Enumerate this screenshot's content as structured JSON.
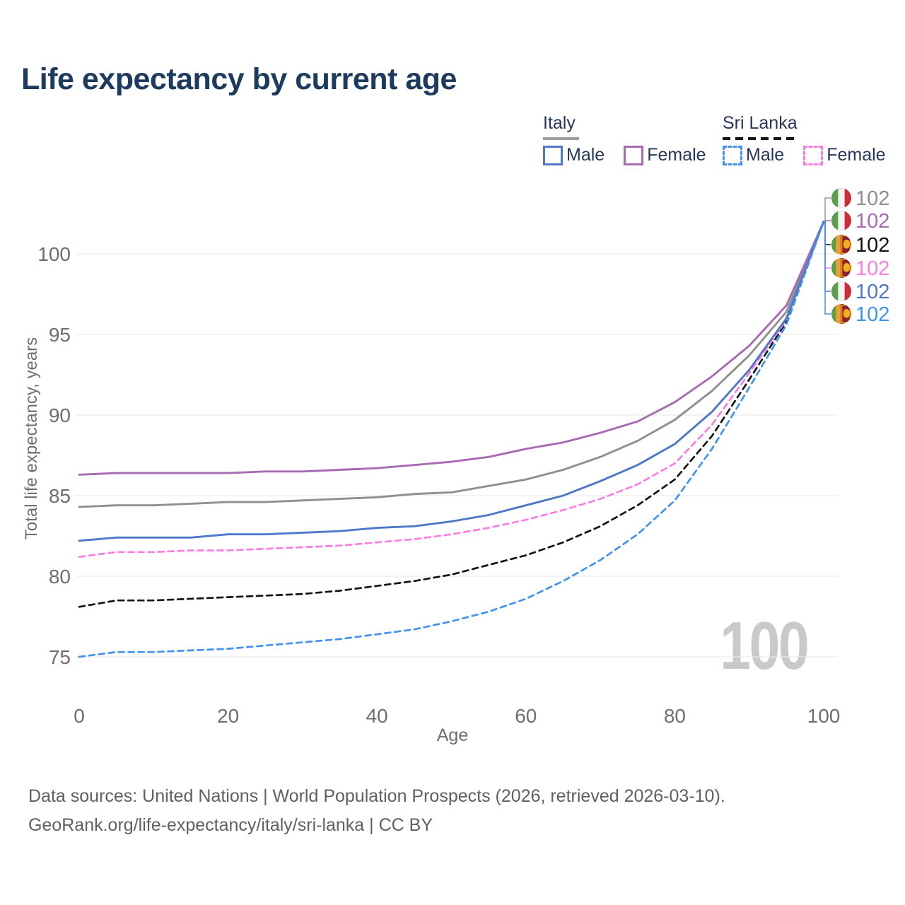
{
  "page": {
    "title": "Life expectancy by current age"
  },
  "legend": {
    "groups": [
      {
        "label": "Italy",
        "line_style": "solid",
        "underline_color": "#9e9e9e",
        "items": [
          {
            "label": "Male",
            "color": "#4d79c7",
            "dash": false
          },
          {
            "label": "Female",
            "color": "#a86bb3",
            "dash": false
          }
        ]
      },
      {
        "label": "Sri Lanka",
        "line_style": "dashed",
        "underline_color": "#161616",
        "items": [
          {
            "label": "Male",
            "color": "#4292f0",
            "dash": true
          },
          {
            "label": "Female",
            "color": "#fa7de4",
            "dash": true
          }
        ]
      }
    ]
  },
  "chart_data": {
    "type": "line",
    "title": "Life expectancy by current age",
    "xlabel": "Age",
    "ylabel": "Total life expectancy, years",
    "x_ticks": [
      0,
      20,
      40,
      60,
      80,
      100
    ],
    "y_ticks": [
      75,
      80,
      85,
      90,
      95,
      100
    ],
    "xlim": [
      0,
      100
    ],
    "ylim": [
      73.5,
      103.5
    ],
    "grid": "horizontal-only",
    "gridline_color": "#e9e9e9",
    "watermark": "100",
    "ages": [
      0,
      5,
      10,
      15,
      20,
      25,
      30,
      35,
      40,
      45,
      50,
      55,
      60,
      65,
      70,
      75,
      80,
      85,
      90,
      95,
      100
    ],
    "series": [
      {
        "id": "italy-all",
        "country": "Italy",
        "sex": "All",
        "flag": "italy",
        "color": "#8f8f8f",
        "dash": false,
        "end_label": "102",
        "values": [
          84.3,
          84.4,
          84.4,
          84.5,
          84.6,
          84.6,
          84.7,
          84.8,
          84.9,
          85.1,
          85.2,
          85.6,
          86.0,
          86.6,
          87.4,
          88.4,
          89.7,
          91.5,
          93.7,
          96.4,
          102
        ]
      },
      {
        "id": "italy-female",
        "country": "Italy",
        "sex": "Female",
        "flag": "italy",
        "color": "#a86bb3",
        "dash": false,
        "end_label": "102",
        "values": [
          86.3,
          86.4,
          86.4,
          86.4,
          86.4,
          86.5,
          86.5,
          86.6,
          86.7,
          86.9,
          87.1,
          87.4,
          87.9,
          88.3,
          88.9,
          89.6,
          90.8,
          92.4,
          94.3,
          96.8,
          102
        ]
      },
      {
        "id": "sri-lanka-all",
        "country": "Sri Lanka",
        "sex": "All",
        "flag": "sri-lanka",
        "color": "#141414",
        "dash": true,
        "end_label": "102",
        "values": [
          78.1,
          78.5,
          78.5,
          78.6,
          78.7,
          78.8,
          78.9,
          79.1,
          79.4,
          79.7,
          80.1,
          80.7,
          81.3,
          82.1,
          83.1,
          84.4,
          86.0,
          88.7,
          92.2,
          95.8,
          102
        ]
      },
      {
        "id": "sri-lanka-female",
        "country": "Sri Lanka",
        "sex": "Female",
        "flag": "sri-lanka",
        "color": "#fa7de4",
        "dash": true,
        "end_label": "102",
        "values": [
          81.2,
          81.5,
          81.5,
          81.6,
          81.6,
          81.7,
          81.8,
          81.9,
          82.1,
          82.3,
          82.6,
          83.0,
          83.5,
          84.1,
          84.8,
          85.7,
          87.0,
          89.4,
          92.6,
          95.9,
          102
        ]
      },
      {
        "id": "italy-male",
        "country": "Italy",
        "sex": "Male",
        "flag": "italy",
        "color": "#4d79c7",
        "dash": false,
        "end_label": "102",
        "values": [
          82.2,
          82.4,
          82.4,
          82.4,
          82.6,
          82.6,
          82.7,
          82.8,
          83.0,
          83.1,
          83.4,
          83.8,
          84.4,
          85.0,
          85.9,
          86.9,
          88.2,
          90.2,
          92.8,
          96.0,
          102
        ]
      },
      {
        "id": "sri-lanka-male",
        "country": "Sri Lanka",
        "sex": "Male",
        "flag": "sri-lanka",
        "color": "#4292f0",
        "dash": true,
        "end_label": "102",
        "values": [
          75.0,
          75.3,
          75.3,
          75.4,
          75.5,
          75.7,
          75.9,
          76.1,
          76.4,
          76.7,
          77.2,
          77.8,
          78.6,
          79.7,
          81.0,
          82.6,
          84.7,
          87.9,
          91.7,
          95.6,
          102
        ]
      }
    ]
  },
  "flag_colors": {
    "italy": {
      "green": "#5ba04a",
      "white": "#f3f3f3",
      "red": "#cd2b37"
    },
    "sri_lanka": {
      "green": "#58a043",
      "orange": "#ef9f30",
      "gold": "#f2b01c",
      "maroon": "#8e2130"
    }
  },
  "footer": {
    "line1": "Data sources: United Nations | World Population Prospects (2026, retrieved 2026-03-10).",
    "line2": "GeoRank.org/life-expectancy/italy/sri-lanka | CC BY"
  }
}
